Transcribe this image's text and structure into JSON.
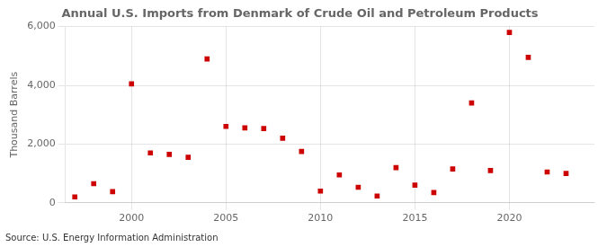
{
  "chart_data": {
    "type": "scatter",
    "title": "Annual U.S. Imports from Denmark of Crude Oil and Petroleum Products",
    "ylabel": "Thousand Barrels",
    "annotation": "Source: U.S. Energy Information Administration",
    "x": [
      1997,
      1998,
      1999,
      2000,
      2001,
      2002,
      2003,
      2004,
      2005,
      2006,
      2007,
      2008,
      2009,
      2010,
      2011,
      2012,
      2013,
      2014,
      2015,
      2016,
      2017,
      2018,
      2019,
      2020,
      2021,
      2022,
      2023
    ],
    "values": [
      200,
      650,
      380,
      4050,
      1700,
      1650,
      1550,
      4900,
      2600,
      2550,
      2530,
      2200,
      1750,
      400,
      950,
      530,
      230,
      1200,
      600,
      350,
      1150,
      3400,
      1100,
      5800,
      4950,
      1050,
      1000
    ],
    "color": "#cc0000",
    "marker": "square",
    "grid": true,
    "xlim": [
      1996.5,
      2024.5
    ],
    "xticks": [
      2000,
      2005,
      2010,
      2015,
      2020
    ],
    "ylim": [
      0,
      6000
    ],
    "yticks": [
      0,
      {
        "value": 2000,
        "label": "2,000"
      },
      {
        "value": 4000,
        "label": "4,000"
      },
      {
        "value": 6000,
        "label": "6,000"
      }
    ]
  }
}
